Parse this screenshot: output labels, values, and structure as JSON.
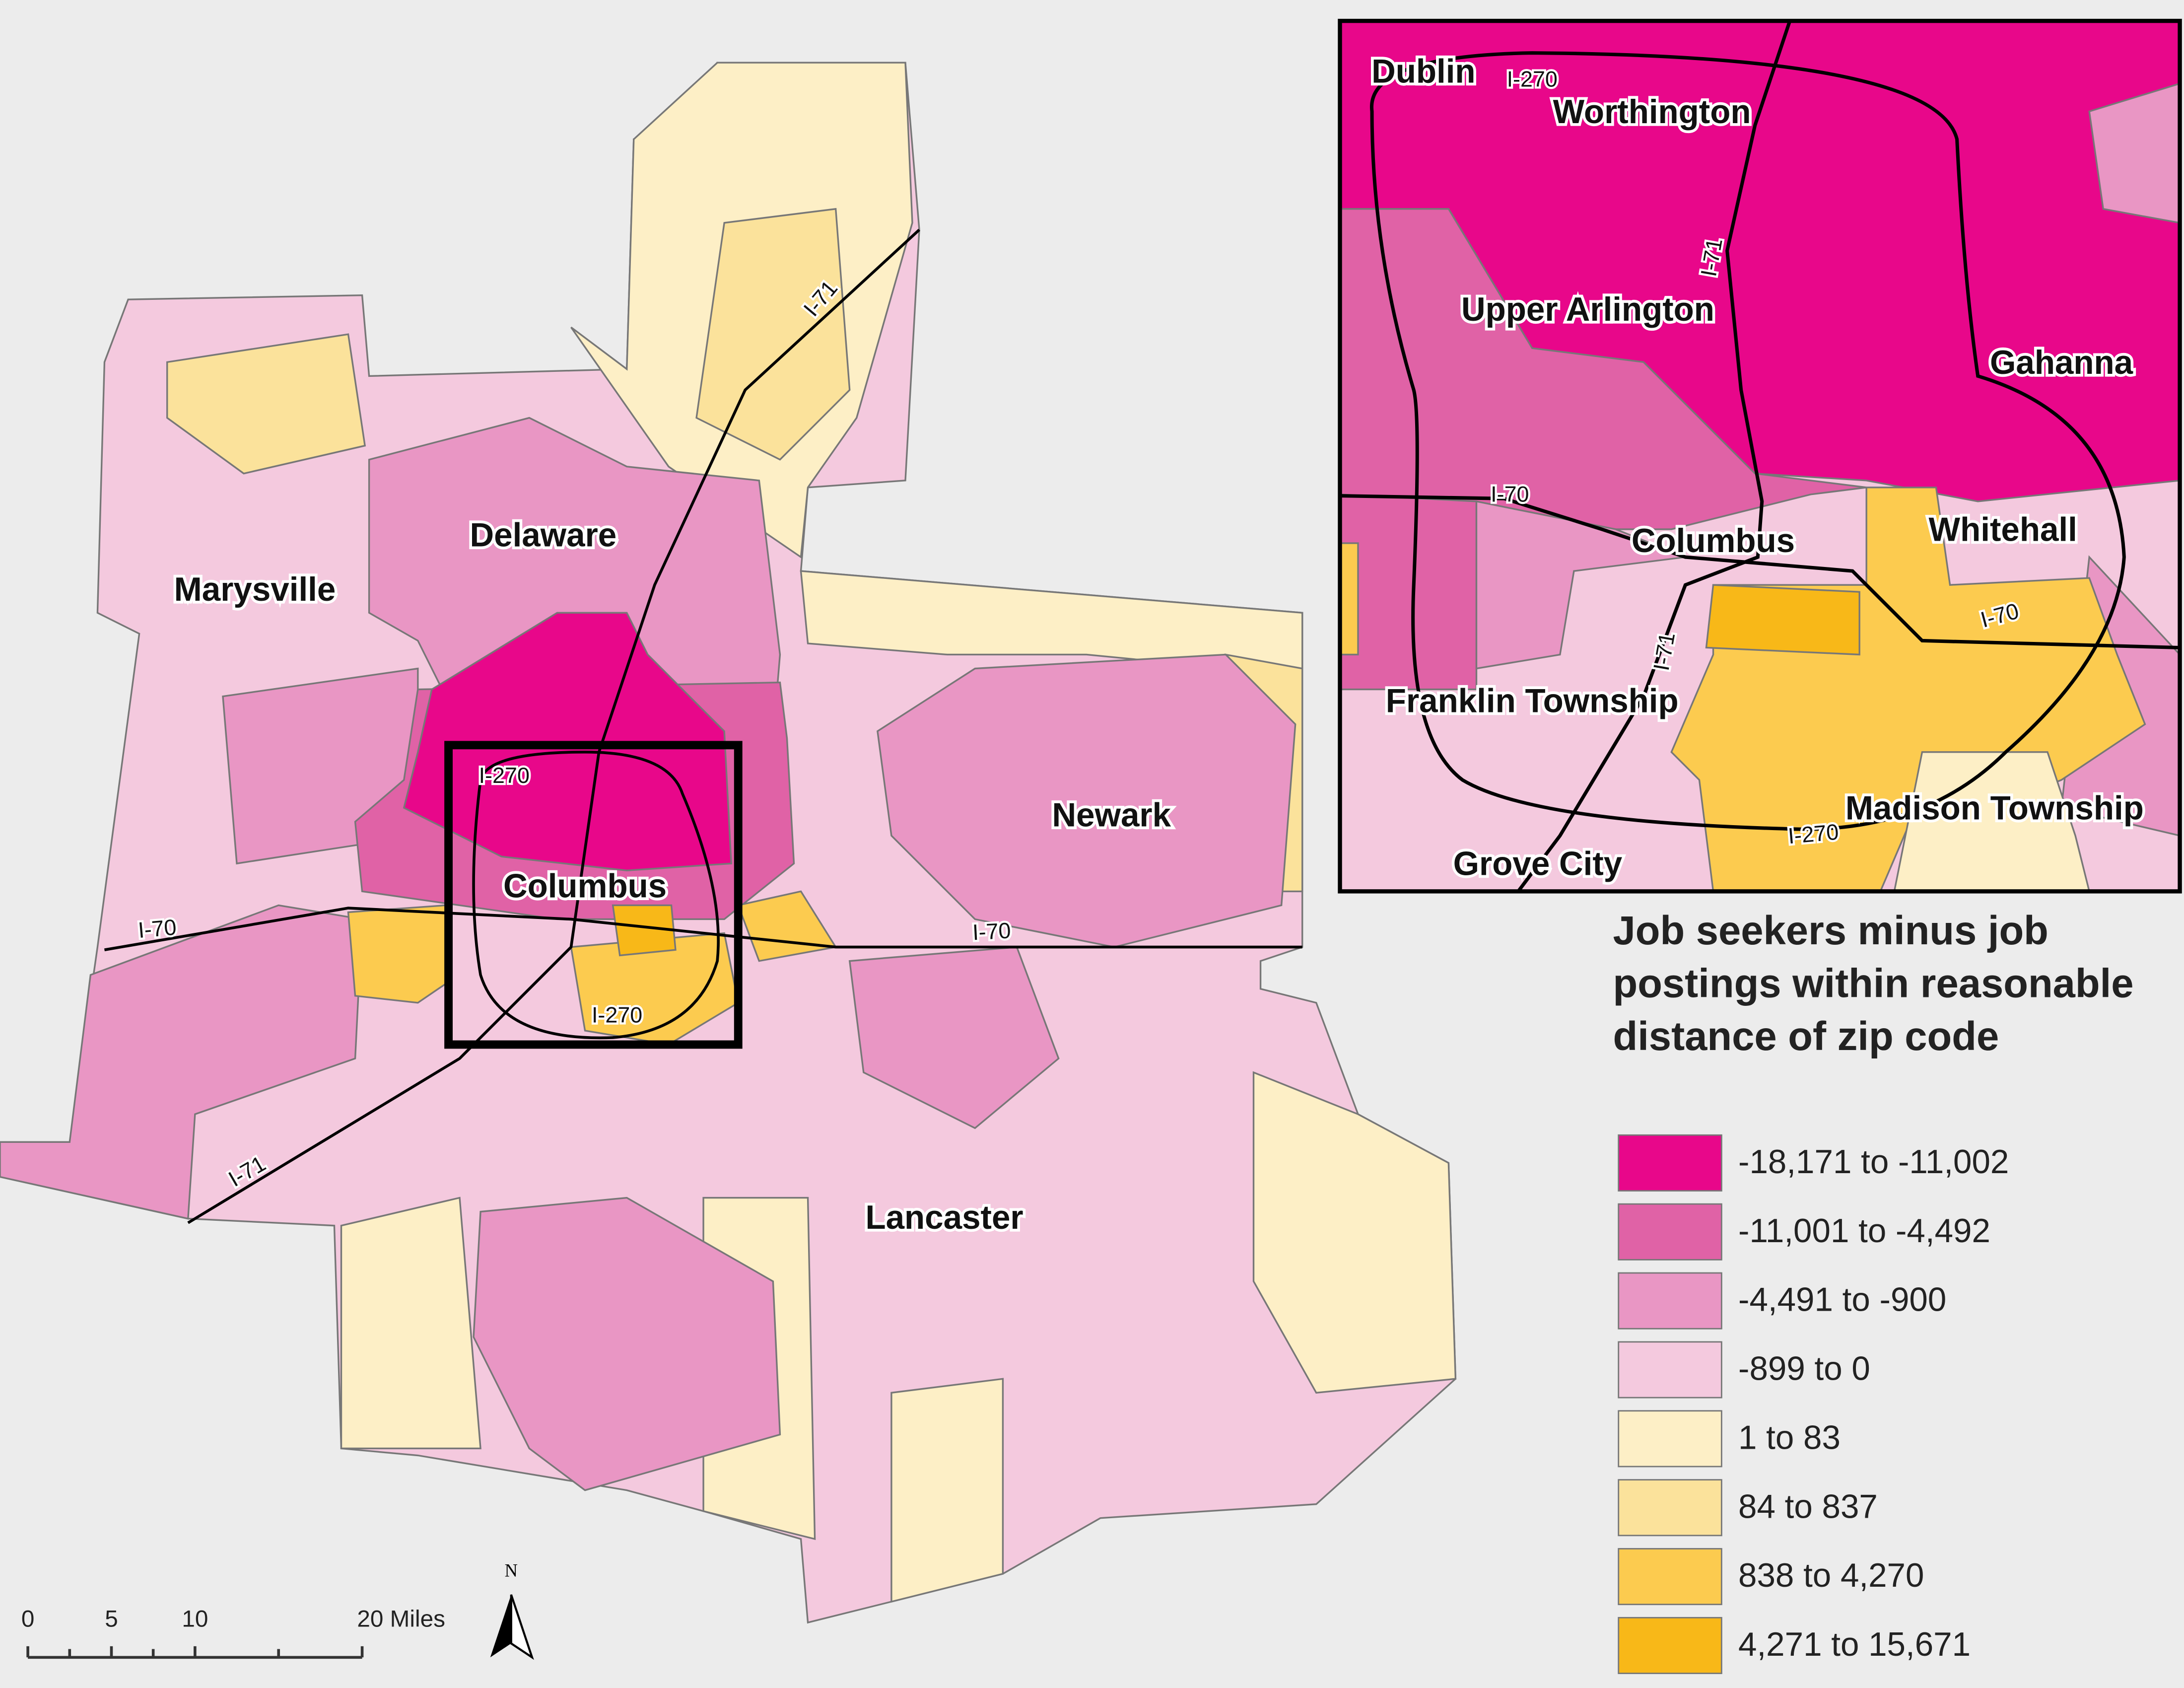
{
  "main_map": {
    "city_labels": [
      "Delaware",
      "Marysville",
      "Columbus",
      "Newark",
      "Lancaster"
    ],
    "highway_labels": [
      "I-71",
      "I-70",
      "I-270",
      "I-70",
      "I-270",
      "I-71"
    ]
  },
  "inset_map": {
    "city_labels": [
      "Dublin",
      "Worthington",
      "Upper Arlington",
      "Gahanna",
      "Columbus",
      "Whitehall",
      "Franklin Township",
      "Madison Township",
      "Grove City"
    ],
    "highway_labels": [
      "I-270",
      "I-71",
      "I-70",
      "I-71",
      "I-70",
      "I-270"
    ]
  },
  "legend": {
    "title": "Job seekers minus job postings within reasonable distance of zip code",
    "items": [
      {
        "label": "-18,171 to -11,002",
        "color": "#e8078a"
      },
      {
        "label": "-11,001 to -4,492",
        "color": "#e062a6"
      },
      {
        "label": "-4,491 to -900",
        "color": "#e996c4"
      },
      {
        "label": "-899 to 0",
        "color": "#f4c9de"
      },
      {
        "label": "1 to 83",
        "color": "#fdefc6"
      },
      {
        "label": "84 to 837",
        "color": "#fbe29b"
      },
      {
        "label": "838 to 4,270",
        "color": "#fccb4f"
      },
      {
        "label": "4,271 to 15,671",
        "color": "#f8b818"
      }
    ]
  },
  "scale_bar": {
    "labels": [
      "0",
      "5",
      "10",
      "20 Miles"
    ]
  },
  "north_arrow": {
    "label": "N"
  }
}
